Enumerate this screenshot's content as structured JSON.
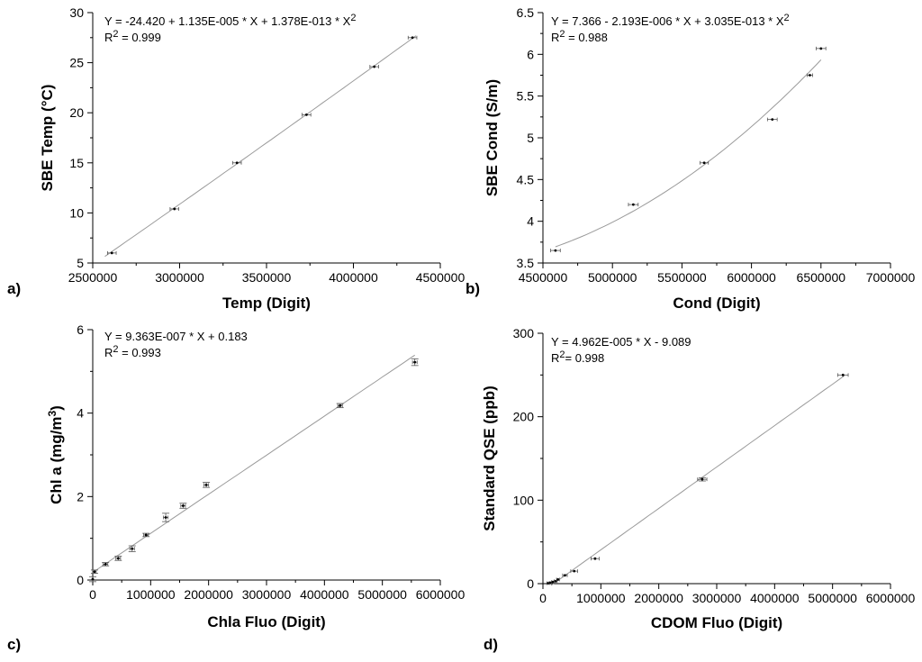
{
  "chart_data": [
    {
      "id": "a",
      "type": "scatter",
      "panel_label": "a)",
      "xlabel": "Temp (Digit)",
      "ylabel": "SBE Temp (°C)",
      "xlim": [
        2500000,
        4500000
      ],
      "ylim": [
        5,
        30
      ],
      "xticks": [
        2500000,
        3000000,
        3500000,
        4000000,
        4500000
      ],
      "yticks": [
        5,
        10,
        15,
        20,
        25,
        30
      ],
      "equation": "Y = -24.420 + 1.135E-005 * X + 1.378E-013 * X",
      "equation_sup": "2",
      "r2_label": "R",
      "r2_sup": "2",
      "r2_value": " = 0.999",
      "fit": {
        "kind": "quadratic",
        "coef": [
          -24.42,
          1.135e-05,
          1.378e-13
        ],
        "xrange": [
          2570000,
          4360000
        ]
      },
      "x": [
        2610000,
        2970000,
        3330000,
        3730000,
        4120000,
        4340000
      ],
      "y": [
        6.0,
        10.4,
        15.0,
        19.8,
        24.6,
        27.5
      ],
      "xerr": [
        25000,
        25000,
        25000,
        25000,
        25000,
        25000
      ],
      "yerr": [
        0,
        0,
        0,
        0,
        0,
        0
      ]
    },
    {
      "id": "b",
      "type": "scatter",
      "panel_label": "b)",
      "xlabel": "Cond (Digit)",
      "ylabel": "SBE Cond (S/m)",
      "xlim": [
        4500000,
        7000000
      ],
      "ylim": [
        3.5,
        6.5
      ],
      "xticks": [
        4500000,
        5000000,
        5500000,
        6000000,
        6500000,
        7000000
      ],
      "yticks": [
        3.5,
        4,
        4.5,
        5,
        5.5,
        6,
        6.5
      ],
      "equation": "Y = 7.366 - 2.193E-006 * X + 3.035E-013 * X",
      "equation_sup": "2",
      "r2_label": "R",
      "r2_sup": "2",
      "r2_value": " = 0.988",
      "fit": {
        "kind": "quadratic",
        "coef": [
          7.366,
          -2.193e-06,
          3.035e-13
        ],
        "xrange": [
          4590000,
          6500000
        ]
      },
      "x": [
        4590000,
        5150000,
        5660000,
        6150000,
        6420000,
        6500000
      ],
      "y": [
        3.65,
        4.2,
        4.7,
        5.22,
        5.75,
        6.07
      ],
      "xerr": [
        35000,
        35000,
        30000,
        35000,
        20000,
        35000
      ],
      "yerr": [
        0,
        0,
        0,
        0,
        0,
        0
      ]
    },
    {
      "id": "c",
      "type": "scatter",
      "panel_label": "c)",
      "xlabel": "Chla Fluo (Digit)",
      "ylabel": "Chl a (mg/m",
      "ylabel_sup": "3",
      "ylabel_end": ")",
      "xlim": [
        0,
        6000000
      ],
      "ylim": [
        0,
        6
      ],
      "xticks": [
        0,
        1000000,
        2000000,
        3000000,
        4000000,
        5000000,
        6000000
      ],
      "yticks": [
        0,
        2,
        4,
        6
      ],
      "equation": "Y = 9.363E-007 * X + 0.183",
      "equation_sup": "",
      "r2_label": "R",
      "r2_sup": "2",
      "r2_value": " = 0.993",
      "fit": {
        "kind": "linear",
        "coef": [
          0.183,
          9.363e-07
        ],
        "xrange": [
          0,
          5560000
        ]
      },
      "x": [
        0,
        30000,
        220000,
        440000,
        680000,
        920000,
        1260000,
        1560000,
        1960000,
        4270000,
        5560000
      ],
      "y": [
        0.02,
        0.2,
        0.38,
        0.52,
        0.75,
        1.08,
        1.5,
        1.78,
        2.28,
        4.18,
        5.22
      ],
      "xerr": [
        0,
        30000,
        40000,
        40000,
        40000,
        40000,
        40000,
        40000,
        40000,
        40000,
        40000
      ],
      "yerr": [
        0.06,
        0.04,
        0.04,
        0.05,
        0.07,
        0.04,
        0.1,
        0.06,
        0.06,
        0.05,
        0.08
      ]
    },
    {
      "id": "d",
      "type": "scatter",
      "panel_label": "d)",
      "xlabel": "CDOM Fluo (Digit)",
      "ylabel": "Standard QSE (ppb)",
      "xlim": [
        0,
        6000000
      ],
      "ylim": [
        0,
        300
      ],
      "xticks": [
        0,
        1000000,
        2000000,
        3000000,
        4000000,
        5000000,
        6000000
      ],
      "yticks": [
        0,
        100,
        200,
        300
      ],
      "equation": "Y = 4.962E-005 * X - 9.089",
      "equation_sup": "",
      "r2_label": "R",
      "r2_sup": "2",
      "r2_value": "= 0.998",
      "fit": {
        "kind": "linear",
        "coef": [
          -9.089,
          4.962e-05
        ],
        "xrange": [
          140000,
          5200000
        ]
      },
      "x": [
        90000,
        130000,
        170000,
        220000,
        260000,
        380000,
        540000,
        900000,
        2750000,
        5180000
      ],
      "y": [
        0.5,
        1,
        2,
        3,
        5,
        10,
        15,
        30,
        125,
        250
      ],
      "xerr": [
        20000,
        20000,
        20000,
        25000,
        25000,
        40000,
        60000,
        70000,
        80000,
        90000
      ],
      "yerr": [
        0,
        0,
        0,
        0,
        0,
        0,
        0,
        0,
        2,
        0
      ]
    }
  ]
}
